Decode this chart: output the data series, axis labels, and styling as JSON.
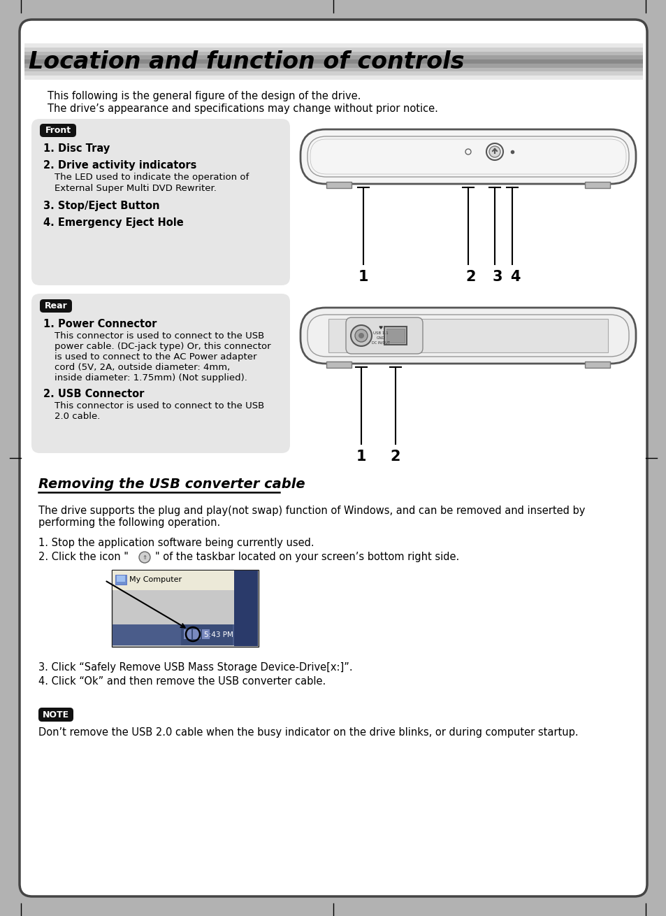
{
  "bg_outer": "#b2b2b2",
  "bg_page": "#ffffff",
  "title_text": "Location and function of controls",
  "subtitle1": "This following is the general figure of the design of the drive.",
  "subtitle2": "The drive’s appearance and specifications may change without prior notice.",
  "front_label": "Front",
  "rear_label": "Rear",
  "note_label": "NOTE",
  "section2_title": "Removing the USB converter cable",
  "step1": "1. Stop the application software being currently used.",
  "step3": "3. Click “Safely Remove USB Mass Storage Device-Drive[x:]”.",
  "step4": "4. Click “Ok” and then remove the USB converter cable.",
  "note_text": "Don’t remove the USB 2.0 cable when the busy indicator on the drive blinks, or during computer startup."
}
